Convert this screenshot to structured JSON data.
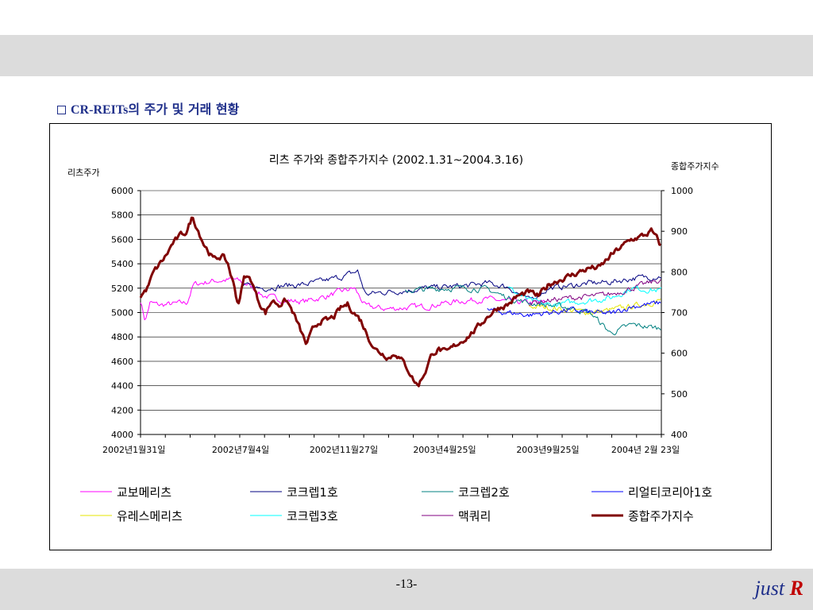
{
  "slide": {
    "heading_prefix": "CR-REITs",
    "heading_suffix": "의 주가 및 거래 현황",
    "page_number": "-13-",
    "brand_text": "just",
    "brand_letter": "R"
  },
  "chart_data": {
    "type": "line",
    "title": "리츠 주가와 종합주가지수 (2002.1.31~2004.3.16)",
    "ylabel": "리츠주가",
    "y2label": "종합주가지수",
    "ylim": [
      4000,
      6000
    ],
    "y2lim": [
      400,
      1000
    ],
    "yticks": [
      "6000",
      "5800",
      "5600",
      "5400",
      "5200",
      "5000",
      "4800",
      "4600",
      "4400",
      "4200",
      "4000"
    ],
    "y2ticks": [
      "1000",
      "900",
      "800",
      "700",
      "600",
      "500",
      "400"
    ],
    "x_ticks": [
      "2002년1월31일",
      "2002년7월4일",
      "2002년11월27일",
      "2003년4월25일",
      "2003년9월25일",
      "2004년 2월 23일"
    ],
    "x_range": [
      "2002-01-31",
      "2004-03-16"
    ],
    "grid": true,
    "legend_position": "bottom",
    "series": [
      {
        "name": "교보메리츠",
        "axis": "left",
        "color": "#ff00ff",
        "width": 1,
        "start": "2002-01-31",
        "end": "2003-09-25",
        "points": [
          [
            "2002-01-31",
            5100
          ],
          [
            "2002-02-07",
            4930
          ],
          [
            "2002-02-14",
            5080
          ],
          [
            "2002-03-01",
            5060
          ],
          [
            "2002-04-10",
            5080
          ],
          [
            "2002-04-20",
            5230
          ],
          [
            "2002-05-20",
            5260
          ],
          [
            "2002-06-20",
            5270
          ],
          [
            "2002-07-10",
            5230
          ],
          [
            "2002-08-01",
            5140
          ],
          [
            "2002-09-01",
            5100
          ],
          [
            "2002-10-01",
            5090
          ],
          [
            "2002-11-01",
            5130
          ],
          [
            "2002-12-01",
            5180
          ],
          [
            "2002-12-15",
            5200
          ],
          [
            "2003-01-01",
            5050
          ],
          [
            "2003-02-01",
            5030
          ],
          [
            "2003-03-01",
            5040
          ],
          [
            "2003-04-01",
            5050
          ],
          [
            "2003-05-01",
            5080
          ],
          [
            "2003-06-01",
            5100
          ],
          [
            "2003-07-01",
            5110
          ],
          [
            "2003-08-01",
            5090
          ],
          [
            "2003-09-01",
            5080
          ],
          [
            "2003-09-25",
            5080
          ]
        ]
      },
      {
        "name": "유레스메리츠",
        "axis": "left",
        "color": "#e6e600",
        "width": 1,
        "start": "2003-09-01",
        "end": "2004-03-16",
        "points": [
          [
            "2003-09-01",
            5050
          ],
          [
            "2003-10-01",
            5040
          ],
          [
            "2003-11-01",
            5020
          ],
          [
            "2003-12-01",
            5000
          ],
          [
            "2004-01-01",
            5020
          ],
          [
            "2004-02-01",
            5050
          ],
          [
            "2004-03-16",
            5100
          ]
        ]
      },
      {
        "name": "코크렙1호",
        "axis": "left",
        "color": "#000080",
        "width": 1,
        "start": "2002-07-01",
        "end": "2004-03-16",
        "points": [
          [
            "2002-07-01",
            5220
          ],
          [
            "2002-08-01",
            5200
          ],
          [
            "2002-09-01",
            5220
          ],
          [
            "2002-10-01",
            5230
          ],
          [
            "2002-11-01",
            5260
          ],
          [
            "2002-12-01",
            5300
          ],
          [
            "2002-12-20",
            5340
          ],
          [
            "2003-01-01",
            5150
          ],
          [
            "2003-02-01",
            5170
          ],
          [
            "2003-03-01",
            5180
          ],
          [
            "2003-04-01",
            5200
          ],
          [
            "2003-05-01",
            5210
          ],
          [
            "2003-06-01",
            5220
          ],
          [
            "2003-07-01",
            5240
          ],
          [
            "2003-08-01",
            5210
          ],
          [
            "2003-09-01",
            5100
          ],
          [
            "2003-10-01",
            5200
          ],
          [
            "2003-11-01",
            5220
          ],
          [
            "2003-12-01",
            5240
          ],
          [
            "2004-01-01",
            5250
          ],
          [
            "2004-02-01",
            5280
          ],
          [
            "2004-03-16",
            5300
          ]
        ]
      },
      {
        "name": "코크렙3호",
        "axis": "left",
        "color": "#00ffff",
        "width": 1,
        "start": "2003-08-01",
        "end": "2004-03-16",
        "points": [
          [
            "2003-08-01",
            5200
          ],
          [
            "2003-09-01",
            5100
          ],
          [
            "2003-10-01",
            5060
          ],
          [
            "2003-11-01",
            5080
          ],
          [
            "2003-12-01",
            5100
          ],
          [
            "2004-01-01",
            5120
          ],
          [
            "2004-02-01",
            5200
          ],
          [
            "2004-03-16",
            5180
          ]
        ]
      },
      {
        "name": "코크렙2호",
        "axis": "left",
        "color": "#008080",
        "width": 1,
        "start": "2003-03-01",
        "end": "2004-03-16",
        "points": [
          [
            "2003-03-01",
            5180
          ],
          [
            "2003-04-01",
            5190
          ],
          [
            "2003-05-01",
            5200
          ],
          [
            "2003-06-01",
            5200
          ],
          [
            "2003-07-01",
            5190
          ],
          [
            "2003-08-01",
            5120
          ],
          [
            "2003-09-01",
            5080
          ],
          [
            "2003-10-01",
            5060
          ],
          [
            "2003-11-01",
            5040
          ],
          [
            "2003-12-01",
            5000
          ],
          [
            "2004-01-01",
            4830
          ],
          [
            "2004-02-01",
            4900
          ],
          [
            "2004-03-16",
            4870
          ]
        ]
      },
      {
        "name": "맥쿼리",
        "axis": "left",
        "color": "#800080",
        "width": 1,
        "start": "2003-09-01",
        "end": "2004-03-16",
        "points": [
          [
            "2003-09-01",
            5080
          ],
          [
            "2003-10-01",
            5100
          ],
          [
            "2003-11-01",
            5120
          ],
          [
            "2003-12-01",
            5130
          ],
          [
            "2004-01-01",
            5150
          ],
          [
            "2004-02-01",
            5200
          ],
          [
            "2004-03-16",
            5270
          ]
        ]
      },
      {
        "name": "리얼티코리아1호",
        "axis": "left",
        "color": "#0000ff",
        "width": 1,
        "start": "2003-07-01",
        "end": "2004-03-16",
        "points": [
          [
            "2003-07-01",
            5020
          ],
          [
            "2003-08-01",
            5000
          ],
          [
            "2003-09-01",
            4980
          ],
          [
            "2003-10-01",
            5000
          ],
          [
            "2003-11-01",
            5020
          ],
          [
            "2003-12-01",
            5000
          ],
          [
            "2004-01-01",
            4990
          ],
          [
            "2004-02-01",
            5050
          ],
          [
            "2004-03-16",
            5080
          ]
        ]
      },
      {
        "name": "종합주가지수",
        "axis": "right",
        "color": "#800000",
        "width": 3,
        "start": "2002-01-31",
        "end": "2004-03-16",
        "points": [
          [
            "2002-01-31",
            740
          ],
          [
            "2002-02-10",
            760
          ],
          [
            "2002-02-20",
            800
          ],
          [
            "2002-03-10",
            840
          ],
          [
            "2002-03-20",
            870
          ],
          [
            "2002-04-01",
            890
          ],
          [
            "2002-04-10",
            900
          ],
          [
            "2002-04-18",
            935
          ],
          [
            "2002-04-25",
            910
          ],
          [
            "2002-05-05",
            870
          ],
          [
            "2002-05-20",
            830
          ],
          [
            "2002-06-01",
            840
          ],
          [
            "2002-06-10",
            820
          ],
          [
            "2002-06-20",
            760
          ],
          [
            "2002-06-25",
            720
          ],
          [
            "2002-07-05",
            790
          ],
          [
            "2002-07-15",
            780
          ],
          [
            "2002-07-25",
            730
          ],
          [
            "2002-08-05",
            700
          ],
          [
            "2002-08-15",
            730
          ],
          [
            "2002-08-25",
            720
          ],
          [
            "2002-09-05",
            730
          ],
          [
            "2002-09-15",
            700
          ],
          [
            "2002-09-25",
            660
          ],
          [
            "2002-10-05",
            620
          ],
          [
            "2002-10-15",
            660
          ],
          [
            "2002-10-25",
            680
          ],
          [
            "2002-11-05",
            680
          ],
          [
            "2002-11-15",
            690
          ],
          [
            "2002-11-25",
            710
          ],
          [
            "2002-12-05",
            720
          ],
          [
            "2002-12-15",
            700
          ],
          [
            "2002-12-25",
            680
          ],
          [
            "2003-01-05",
            640
          ],
          [
            "2003-01-15",
            610
          ],
          [
            "2003-01-25",
            600
          ],
          [
            "2003-02-05",
            590
          ],
          [
            "2003-02-15",
            600
          ],
          [
            "2003-02-25",
            580
          ],
          [
            "2003-03-05",
            560
          ],
          [
            "2003-03-15",
            530
          ],
          [
            "2003-03-20",
            520
          ],
          [
            "2003-04-01",
            560
          ],
          [
            "2003-04-10",
            600
          ],
          [
            "2003-04-20",
            610
          ],
          [
            "2003-05-01",
            600
          ],
          [
            "2003-05-15",
            620
          ],
          [
            "2003-06-01",
            640
          ],
          [
            "2003-06-15",
            660
          ],
          [
            "2003-07-01",
            690
          ],
          [
            "2003-07-15",
            710
          ],
          [
            "2003-08-01",
            720
          ],
          [
            "2003-08-15",
            740
          ],
          [
            "2003-09-01",
            750
          ],
          [
            "2003-09-15",
            740
          ],
          [
            "2003-10-01",
            770
          ],
          [
            "2003-10-15",
            780
          ],
          [
            "2003-11-01",
            790
          ],
          [
            "2003-11-15",
            800
          ],
          [
            "2003-12-01",
            810
          ],
          [
            "2003-12-15",
            810
          ],
          [
            "2004-01-01",
            840
          ],
          [
            "2004-01-15",
            860
          ],
          [
            "2004-02-01",
            880
          ],
          [
            "2004-02-20",
            890
          ],
          [
            "2004-03-01",
            900
          ],
          [
            "2004-03-10",
            880
          ],
          [
            "2004-03-16",
            860
          ]
        ]
      }
    ]
  }
}
